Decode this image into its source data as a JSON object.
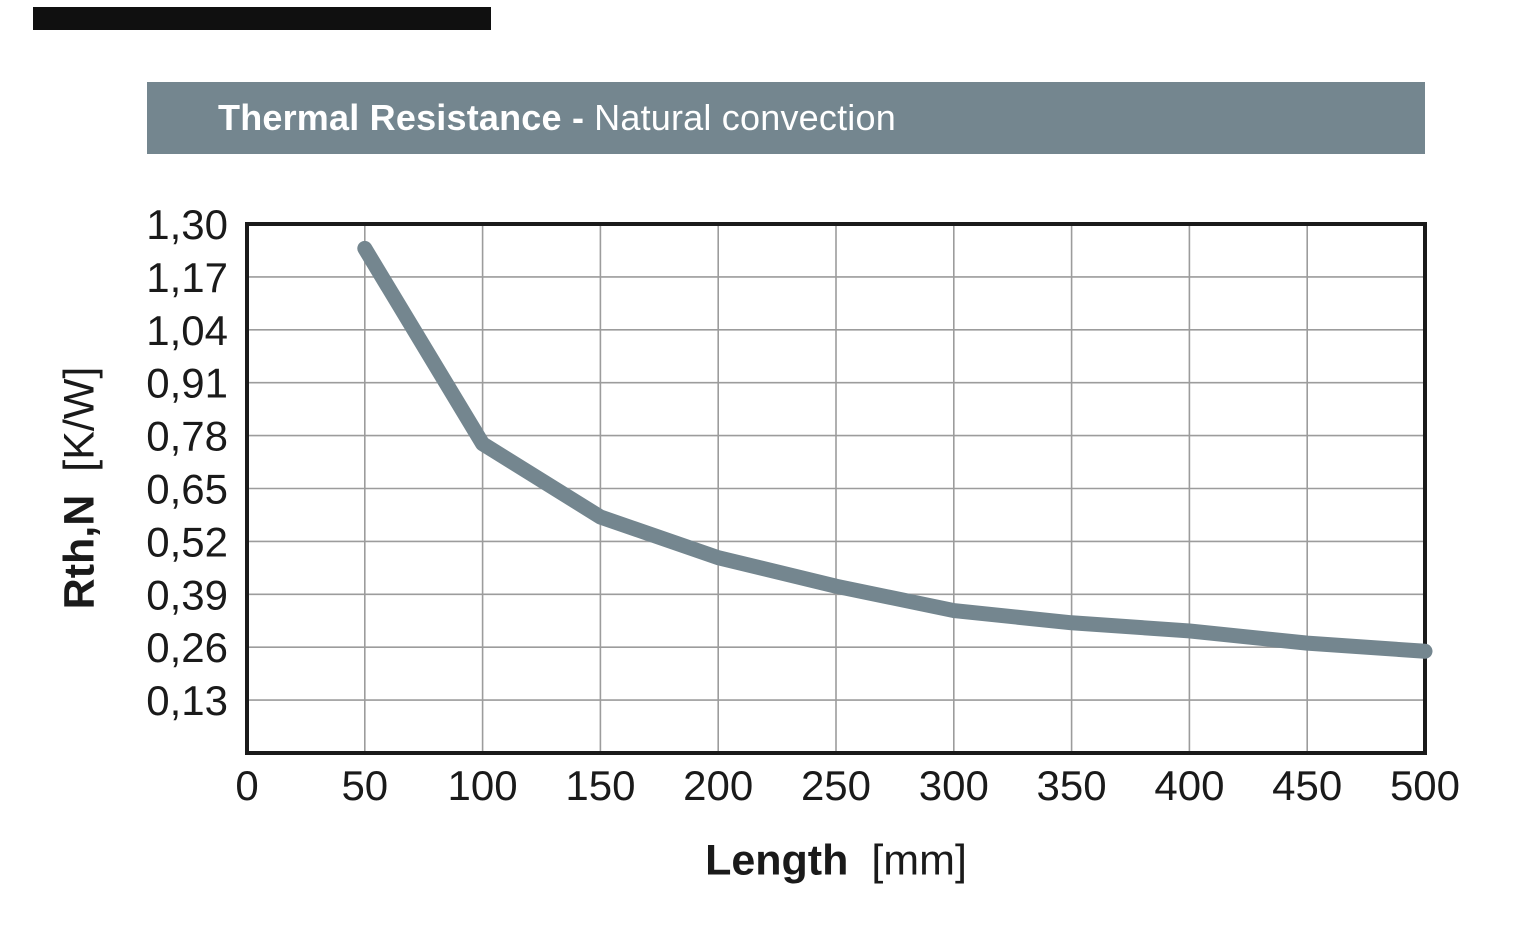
{
  "header": {
    "title_bold": "Thermal Resistance -",
    "title_regular": "Natural convection",
    "bg_color": "#74868F",
    "text_color": "#FFFFFF"
  },
  "top_rule_color": "#101010",
  "axes": {
    "x_title": "Length",
    "x_unit": "[mm]",
    "y_title": "Rth,N",
    "y_unit": "[K/W]"
  },
  "chart_data": {
    "type": "line",
    "title": "Thermal Resistance - Natural convection",
    "xlabel": "Length [mm]",
    "ylabel": "Rth,N [K/W]",
    "x": [
      50,
      100,
      150,
      200,
      250,
      300,
      350,
      400,
      450,
      500
    ],
    "values": [
      1.24,
      0.76,
      0.58,
      0.48,
      0.41,
      0.35,
      0.32,
      0.3,
      0.27,
      0.25
    ],
    "series_name": "Rth,N natural convection",
    "xlim": [
      0,
      500
    ],
    "ylim": [
      0,
      1.3
    ],
    "x_tick_values": [
      0,
      50,
      100,
      150,
      200,
      250,
      300,
      350,
      400,
      450,
      500
    ],
    "x_tick_labels": [
      "0",
      "50",
      "100",
      "150",
      "200",
      "250",
      "300",
      "350",
      "400",
      "450",
      "500"
    ],
    "y_tick_values": [
      0.13,
      0.26,
      0.39,
      0.52,
      0.65,
      0.78,
      0.91,
      1.04,
      1.17,
      1.3
    ],
    "y_tick_labels": [
      "0,13",
      "0,26",
      "0,39",
      "0,52",
      "0,65",
      "0,78",
      "0,91",
      "1,04",
      "1,17",
      "1,30"
    ],
    "grid": true,
    "legend": "none",
    "colors": {
      "line": "#74868F",
      "grid": "#9C9C9C",
      "frame": "#1A1A1A",
      "tick_text": "#1A1A1A"
    }
  }
}
